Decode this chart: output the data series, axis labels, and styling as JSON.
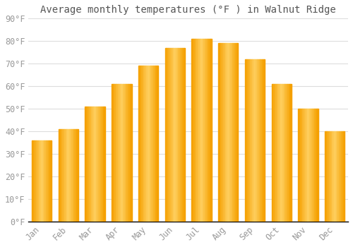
{
  "title": "Average monthly temperatures (°F ) in Walnut Ridge",
  "months": [
    "Jan",
    "Feb",
    "Mar",
    "Apr",
    "May",
    "Jun",
    "Jul",
    "Aug",
    "Sep",
    "Oct",
    "Nov",
    "Dec"
  ],
  "values": [
    36,
    41,
    51,
    61,
    69,
    77,
    81,
    79,
    72,
    61,
    50,
    40
  ],
  "bar_color_center": "#FFD060",
  "bar_color_edge": "#F5A000",
  "background_color": "#FFFFFF",
  "grid_color": "#DDDDDD",
  "ylim": [
    0,
    90
  ],
  "ytick_step": 10,
  "title_fontsize": 10,
  "tick_fontsize": 8.5,
  "tick_color": "#999999",
  "title_color": "#555555",
  "bar_width": 0.75,
  "gradient_bands": 20
}
